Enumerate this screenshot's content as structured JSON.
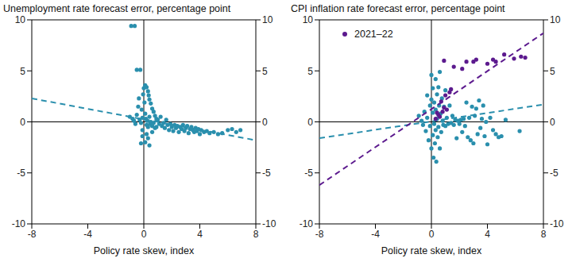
{
  "chart_data": [
    {
      "type": "scatter",
      "title": "Unemployment rate forecast error, percentage point",
      "x_label": "Policy rate skew, index",
      "xlim": [
        -8,
        8
      ],
      "xticks": [
        -8,
        -4,
        0,
        4,
        8
      ],
      "ylim": [
        -10,
        10
      ],
      "yticks": [
        -10,
        -5,
        0,
        5,
        10
      ],
      "series": [
        {
          "type": "scatter",
          "marker": "circle",
          "color": "#2a8fad",
          "x": [
            -1.0,
            -0.9,
            -0.65,
            -0.5,
            -0.25,
            -0.8,
            -0.7,
            -0.6,
            -0.5,
            -0.4,
            -0.35,
            -0.3,
            -0.2,
            -0.15,
            -0.1,
            -0.1,
            -0.05,
            0,
            0.05,
            0.1,
            0.2,
            0.3,
            0.35,
            0.4,
            0.5,
            0.6,
            0.7,
            0.8,
            0.9,
            1.0,
            0.1,
            0.15,
            0.2,
            0.25,
            0.3,
            0.4,
            0.45,
            0.5,
            0.6,
            0.7,
            0.8,
            0.2,
            0.3,
            0.1,
            0.4,
            -0.1,
            -0.2,
            0.6,
            0.9,
            1.1,
            1.2,
            1.3,
            1.4,
            1.5,
            1.6,
            1.7,
            1.8,
            1.9,
            2.0,
            2.1,
            2.2,
            2.3,
            2.4,
            2.5,
            2.6,
            2.7,
            2.8,
            2.9,
            3.0,
            3.1,
            3.2,
            3.3,
            3.4,
            3.5,
            3.6,
            3.7,
            3.8,
            3.9,
            4.0,
            4.1,
            4.3,
            4.5,
            4.7,
            5.0,
            5.3,
            5.6,
            6.0,
            6.3,
            6.6,
            6.9
          ],
          "values": [
            0.5,
            9.4,
            9.4,
            5.1,
            5.1,
            0.3,
            0.1,
            -0.2,
            0.7,
            1.5,
            2.3,
            0.2,
            -0.1,
            1.2,
            0.4,
            -0.8,
            2.7,
            3.3,
            1.9,
            3.6,
            3.4,
            3.0,
            2.6,
            2.2,
            1.8,
            1.3,
            1.0,
            0.6,
            0.3,
            0.2,
            0.8,
            0.3,
            -0.3,
            0.1,
            -0.5,
            0.5,
            -0.2,
            0.0,
            -0.4,
            -0.1,
            -0.6,
            -1.2,
            -1.6,
            -2.0,
            -2.3,
            -1.4,
            -2.1,
            -1.0,
            -0.5,
            -0.2,
            0.5,
            -0.4,
            -0.1,
            -0.6,
            0.2,
            -0.3,
            -0.8,
            -0.2,
            -0.5,
            -0.9,
            -0.3,
            -0.6,
            -0.4,
            -1.0,
            -0.5,
            -0.7,
            -0.3,
            -0.9,
            -0.6,
            -0.4,
            -1.1,
            -0.7,
            -0.5,
            -0.8,
            -1.0,
            -0.6,
            -0.9,
            -0.7,
            -1.2,
            -0.8,
            -1.0,
            -0.9,
            -1.1,
            -1.0,
            -1.2,
            -1.1,
            -0.8,
            -0.7,
            -1.0,
            -0.8
          ]
        },
        {
          "type": "line",
          "line_style": "dashed",
          "color": "#2a8fad",
          "x": [
            -8,
            8
          ],
          "values": [
            2.3,
            -1.8
          ]
        }
      ]
    },
    {
      "type": "scatter",
      "title": "CPI inflation rate forecast error, percentage point",
      "x_label": "Policy rate skew, index",
      "xlim": [
        -8,
        8
      ],
      "xticks": [
        -8,
        -4,
        0,
        4,
        8
      ],
      "ylim": [
        -10,
        10
      ],
      "yticks": [
        -10,
        -5,
        0,
        5,
        10
      ],
      "legend": "upper left",
      "series": [
        {
          "type": "scatter",
          "marker": "circle",
          "color": "#2a8fad",
          "x": [
            -0.9,
            -0.7,
            -0.6,
            -0.5,
            -0.4,
            -0.3,
            -0.3,
            -0.2,
            -0.1,
            -0.1,
            0,
            0,
            0,
            0.1,
            0.1,
            0.1,
            0.15,
            0.2,
            0.2,
            0.25,
            0.3,
            0.3,
            0.3,
            0.35,
            0.4,
            0.4,
            0.45,
            0.5,
            0.5,
            0.55,
            0.6,
            0.6,
            0.65,
            0.7,
            0.75,
            0.8,
            0.85,
            0.9,
            1.0,
            1.0,
            1.1,
            1.2,
            1.3,
            1.4,
            1.5,
            1.6,
            1.7,
            1.8,
            1.9,
            2.0,
            2.1,
            2.2,
            2.3,
            2.4,
            2.5,
            2.6,
            2.7,
            2.8,
            2.9,
            3.0,
            3.1,
            3.2,
            3.3,
            3.4,
            3.5,
            3.6,
            3.7,
            3.8,
            3.9,
            4.0,
            4.2,
            4.4,
            4.6,
            4.8,
            5.0,
            5.3,
            6.3
          ],
          "values": [
            0.6,
            0.1,
            -0.3,
            1.0,
            -0.9,
            2.6,
            0.4,
            -1.8,
            1.6,
            -0.4,
            4.6,
            2.2,
            -2.6,
            3.3,
            0.9,
            -1.3,
            -3.5,
            1.9,
            -0.2,
            -2.1,
            4.2,
            1.2,
            -0.8,
            -3.9,
            2.7,
            0.3,
            -1.5,
            3.4,
            -0.5,
            1.6,
            4.9,
            -2.6,
            0.8,
            -1.0,
            2.3,
            0.1,
            -0.3,
            1.5,
            -0.4,
            3.1,
            0.4,
            -0.2,
            1.6,
            -0.1,
            0.6,
            -0.3,
            0.2,
            -1.6,
            0.1,
            -0.2,
            0.2,
            -1.0,
            0.3,
            -0.4,
            1.9,
            -1.5,
            0.4,
            -1.8,
            1.5,
            -2.1,
            0.6,
            1.3,
            -1.2,
            2.1,
            -0.6,
            0.3,
            1.6,
            -1.4,
            0.0,
            -2.2,
            0.4,
            -0.8,
            -1.2,
            -1.5,
            -1.4,
            0.2,
            -0.9
          ]
        },
        {
          "type": "line",
          "line_style": "dashed",
          "color": "#2a8fad",
          "x": [
            -8,
            8
          ],
          "values": [
            -1.6,
            1.7
          ]
        },
        {
          "type": "scatter",
          "marker": "circle",
          "name": "2021–22",
          "color": "#5c1a8e",
          "x": [
            0.3,
            0.4,
            0.5,
            0.6,
            0.8,
            0.9,
            0.7,
            1.0,
            1.1,
            1.3,
            1.4,
            0.9,
            1.6,
            2.2,
            2.5,
            3.0,
            3.2,
            4.0,
            4.4,
            4.6,
            5.2,
            5.9,
            6.4,
            6.7
          ],
          "values": [
            0.3,
            0.9,
            0.7,
            0.5,
            1.0,
            1.4,
            2.0,
            2.6,
            1.2,
            2.9,
            3.2,
            6.0,
            5.4,
            5.2,
            5.9,
            5.9,
            6.1,
            5.7,
            6.1,
            5.9,
            6.6,
            6.2,
            6.4,
            6.3
          ]
        },
        {
          "type": "line",
          "line_style": "dashed",
          "color": "#5c1a8e",
          "x": [
            -8,
            8
          ],
          "values": [
            -6.2,
            8.7
          ]
        }
      ]
    }
  ]
}
